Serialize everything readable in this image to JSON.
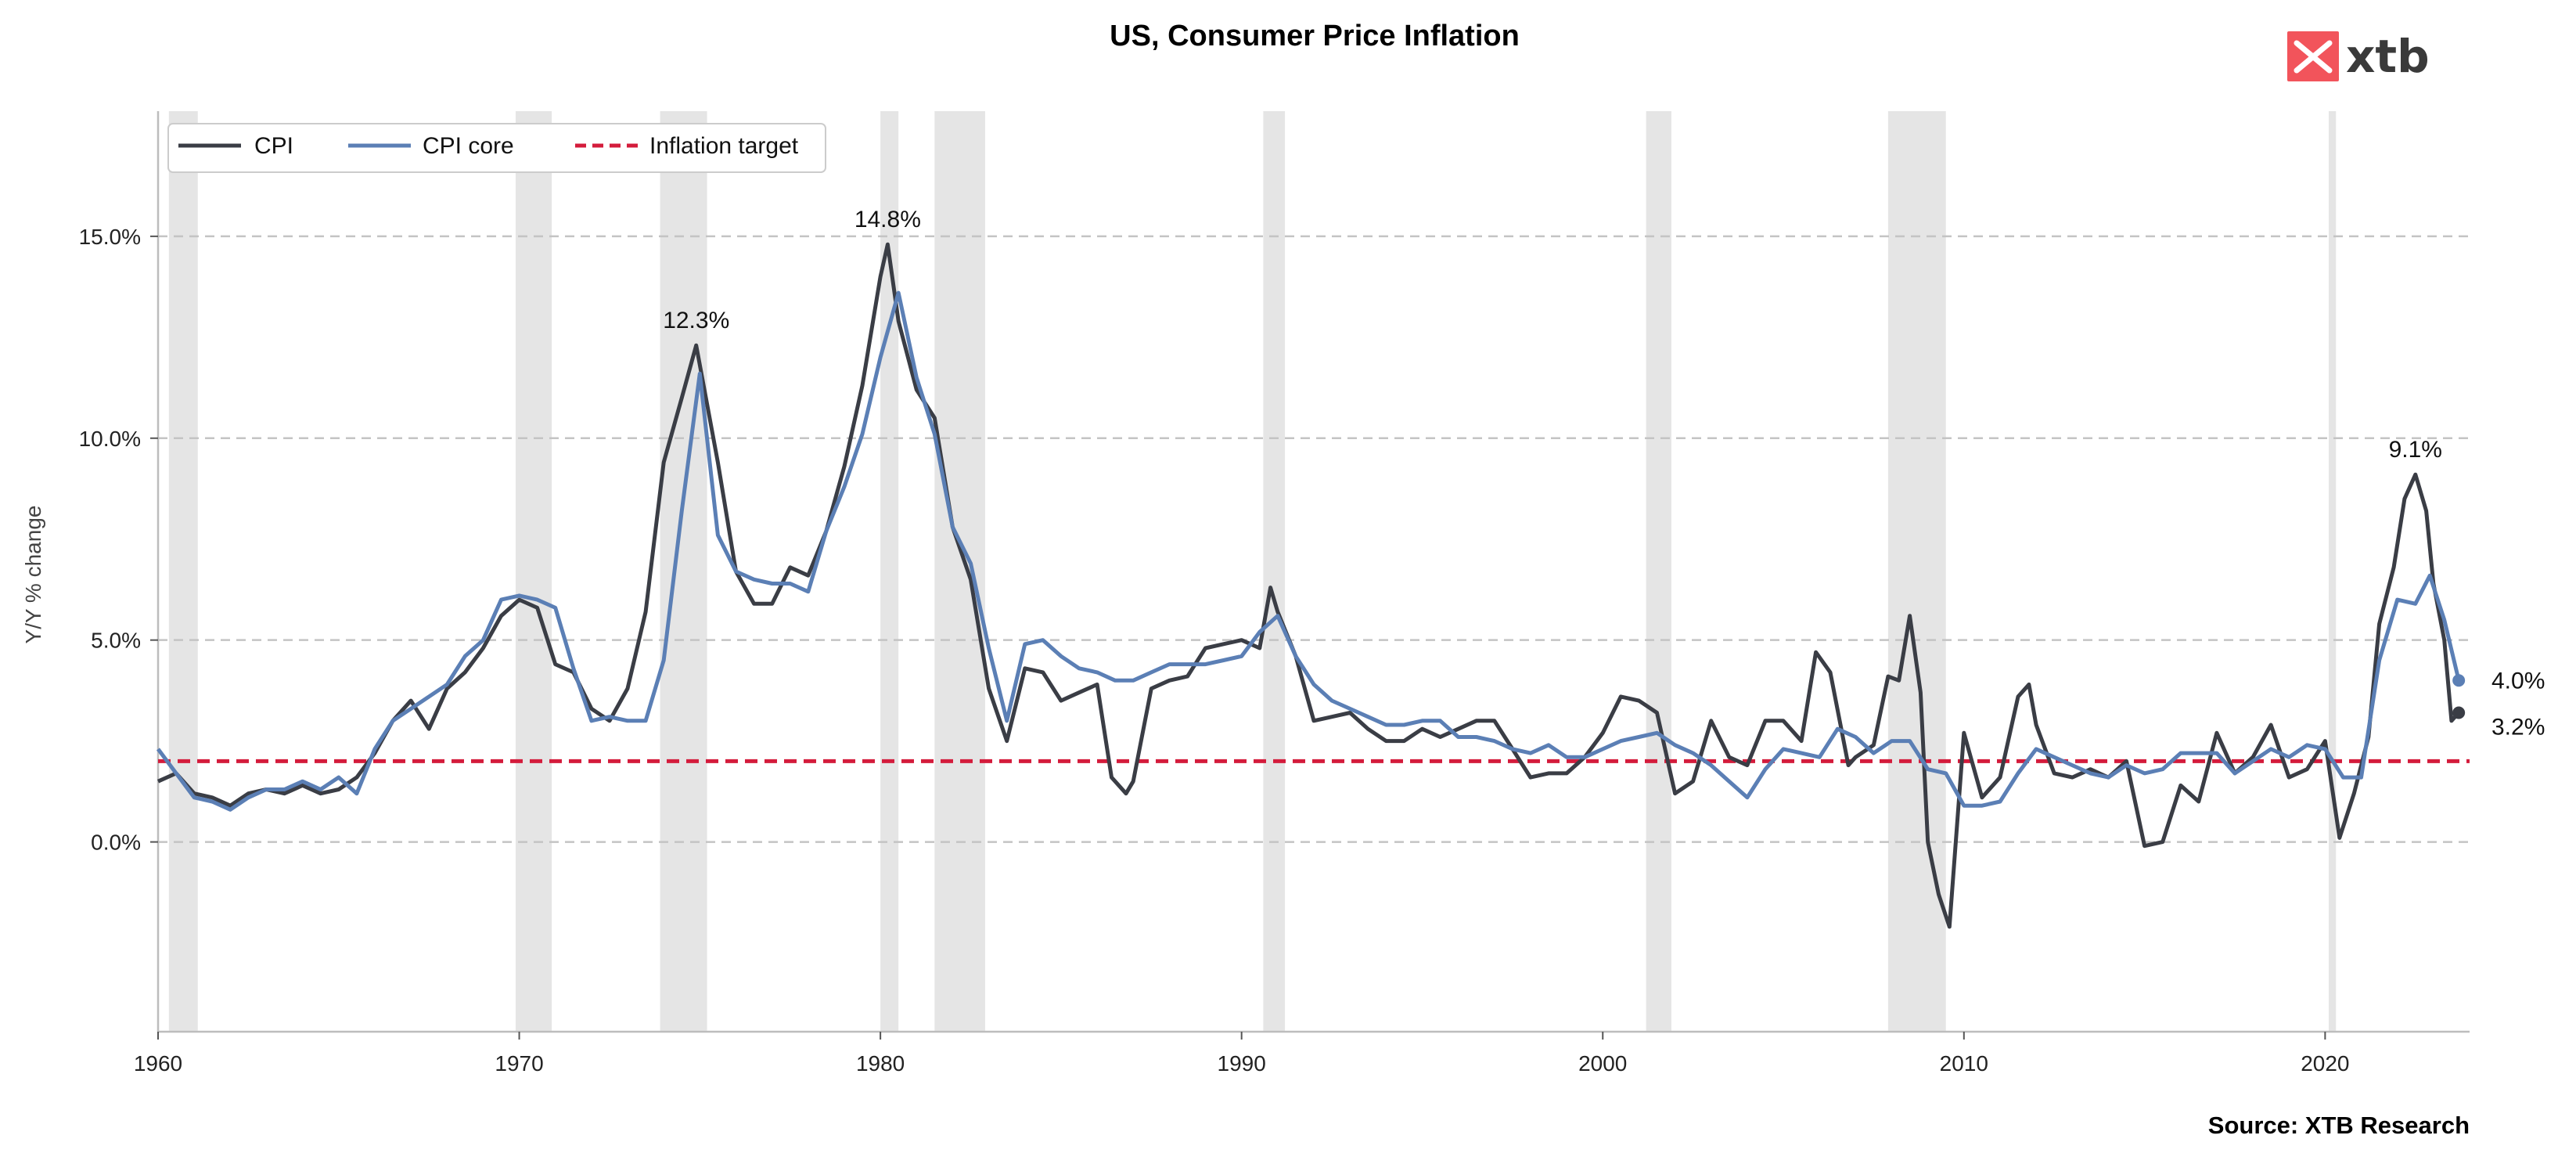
{
  "chart_data": {
    "type": "line",
    "title": "US, Consumer Price Inflation",
    "ylabel": "Y/Y % change",
    "source": "Source: XTB Research",
    "xlim": [
      1960,
      2024.0
    ],
    "ylim": [
      -4.7,
      18.1
    ],
    "x_ticks": [
      1960,
      1970,
      1980,
      1990,
      2000,
      2010,
      2020
    ],
    "x_tick_labels": [
      "1960",
      "1970",
      "1980",
      "1990",
      "2000",
      "2010",
      "2020"
    ],
    "y_ticks": [
      0,
      5,
      10,
      15
    ],
    "y_tick_labels": [
      "0.0%",
      "5.0%",
      "10.0%",
      "15.0%"
    ],
    "grid": "horizontal dashed",
    "legend_position": "top-left",
    "recessions": [
      [
        1960.3,
        1961.1
      ],
      [
        1969.9,
        1970.9
      ],
      [
        1973.9,
        1975.2
      ],
      [
        1980.0,
        1980.5
      ],
      [
        1981.5,
        1982.9
      ],
      [
        1990.6,
        1991.2
      ],
      [
        2001.2,
        2001.9
      ],
      [
        2007.9,
        2009.5
      ],
      [
        2020.1,
        2020.3
      ]
    ],
    "series": [
      {
        "name": "CPI",
        "color": "#3a3d45",
        "style": "solid",
        "x": [
          1960.0,
          1960.5,
          1961.0,
          1961.5,
          1962.0,
          1962.5,
          1963.0,
          1963.5,
          1964.0,
          1964.5,
          1965.0,
          1965.5,
          1966.0,
          1966.5,
          1967.0,
          1967.5,
          1968.0,
          1968.5,
          1969.0,
          1969.5,
          1970.0,
          1970.5,
          1971.0,
          1971.5,
          1972.0,
          1972.5,
          1973.0,
          1973.5,
          1974.0,
          1974.5,
          1974.9,
          1975.5,
          1976.0,
          1976.5,
          1977.0,
          1977.5,
          1978.0,
          1978.5,
          1979.0,
          1979.5,
          1980.0,
          1980.2,
          1980.5,
          1981.0,
          1981.5,
          1982.0,
          1982.5,
          1983.0,
          1983.5,
          1984.0,
          1984.5,
          1985.0,
          1985.5,
          1986.0,
          1986.4,
          1986.8,
          1987.0,
          1987.5,
          1988.0,
          1988.5,
          1989.0,
          1989.5,
          1990.0,
          1990.5,
          1990.8,
          1991.0,
          1991.5,
          1992.0,
          1992.5,
          1993.0,
          1993.5,
          1994.0,
          1994.5,
          1995.0,
          1995.5,
          1996.0,
          1996.5,
          1997.0,
          1997.5,
          1998.0,
          1998.5,
          1999.0,
          1999.5,
          2000.0,
          2000.5,
          2001.0,
          2001.5,
          2002.0,
          2002.5,
          2003.0,
          2003.5,
          2004.0,
          2004.5,
          2005.0,
          2005.5,
          2005.9,
          2006.3,
          2006.8,
          2007.0,
          2007.5,
          2007.9,
          2008.2,
          2008.5,
          2008.8,
          2009.0,
          2009.3,
          2009.6,
          2010.0,
          2010.5,
          2011.0,
          2011.5,
          2011.8,
          2012.0,
          2012.5,
          2013.0,
          2013.5,
          2014.0,
          2014.5,
          2015.0,
          2015.5,
          2016.0,
          2016.5,
          2017.0,
          2017.5,
          2018.0,
          2018.5,
          2019.0,
          2019.5,
          2020.0,
          2020.4,
          2020.8,
          2021.2,
          2021.5,
          2021.9,
          2022.2,
          2022.5,
          2022.8,
          2023.0,
          2023.3,
          2023.5,
          2023.7
        ],
        "values": [
          1.5,
          1.7,
          1.2,
          1.1,
          0.9,
          1.2,
          1.3,
          1.2,
          1.4,
          1.2,
          1.3,
          1.6,
          2.2,
          3.0,
          3.5,
          2.8,
          3.8,
          4.2,
          4.8,
          5.6,
          6.0,
          5.8,
          4.4,
          4.2,
          3.3,
          3.0,
          3.8,
          5.7,
          9.4,
          11.0,
          12.3,
          9.4,
          6.7,
          5.9,
          5.9,
          6.8,
          6.6,
          7.7,
          9.3,
          11.3,
          14.0,
          14.8,
          12.9,
          11.2,
          10.5,
          7.8,
          6.5,
          3.8,
          2.5,
          4.3,
          4.2,
          3.5,
          3.7,
          3.9,
          1.6,
          1.2,
          1.5,
          3.8,
          4.0,
          4.1,
          4.8,
          4.9,
          5.0,
          4.8,
          6.3,
          5.7,
          4.6,
          3.0,
          3.1,
          3.2,
          2.8,
          2.5,
          2.5,
          2.8,
          2.6,
          2.8,
          3.0,
          3.0,
          2.3,
          1.6,
          1.7,
          1.7,
          2.1,
          2.7,
          3.6,
          3.5,
          3.2,
          1.2,
          1.5,
          3.0,
          2.1,
          1.9,
          3.0,
          3.0,
          2.5,
          4.7,
          4.2,
          1.9,
          2.1,
          2.4,
          4.1,
          4.0,
          5.6,
          3.7,
          0.0,
          -1.3,
          -2.1,
          2.7,
          1.1,
          1.6,
          3.6,
          3.9,
          2.9,
          1.7,
          1.6,
          1.8,
          1.6,
          2.0,
          -0.1,
          0.0,
          1.4,
          1.0,
          2.7,
          1.7,
          2.1,
          2.9,
          1.6,
          1.8,
          2.5,
          0.1,
          1.2,
          2.6,
          5.4,
          6.8,
          8.5,
          9.1,
          8.2,
          6.4,
          5.0,
          3.0,
          3.2
        ]
      },
      {
        "name": "CPI core",
        "color": "#5b7fb5",
        "style": "solid",
        "x": [
          1960.0,
          1960.5,
          1961.0,
          1961.5,
          1962.0,
          1962.5,
          1963.0,
          1963.5,
          1964.0,
          1964.5,
          1965.0,
          1965.5,
          1966.0,
          1966.5,
          1967.0,
          1967.5,
          1968.0,
          1968.5,
          1969.0,
          1969.5,
          1970.0,
          1970.5,
          1971.0,
          1971.5,
          1972.0,
          1972.5,
          1973.0,
          1973.5,
          1974.0,
          1974.5,
          1975.0,
          1975.5,
          1976.0,
          1976.5,
          1977.0,
          1977.5,
          1978.0,
          1978.5,
          1979.0,
          1979.5,
          1980.0,
          1980.5,
          1981.0,
          1981.5,
          1982.0,
          1982.5,
          1983.0,
          1983.5,
          1984.0,
          1984.5,
          1985.0,
          1985.5,
          1986.0,
          1986.5,
          1987.0,
          1987.5,
          1988.0,
          1988.5,
          1989.0,
          1989.5,
          1990.0,
          1990.5,
          1991.0,
          1991.5,
          1992.0,
          1992.5,
          1993.0,
          1993.5,
          1994.0,
          1994.5,
          1995.0,
          1995.5,
          1996.0,
          1996.5,
          1997.0,
          1997.5,
          1998.0,
          1998.5,
          1999.0,
          1999.5,
          2000.0,
          2000.5,
          2001.0,
          2001.5,
          2002.0,
          2002.5,
          2003.0,
          2003.5,
          2004.0,
          2004.5,
          2005.0,
          2005.5,
          2006.0,
          2006.5,
          2007.0,
          2007.5,
          2008.0,
          2008.5,
          2009.0,
          2009.5,
          2010.0,
          2010.5,
          2011.0,
          2011.5,
          2012.0,
          2012.5,
          2013.0,
          2013.5,
          2014.0,
          2014.5,
          2015.0,
          2015.5,
          2016.0,
          2016.5,
          2017.0,
          2017.5,
          2018.0,
          2018.5,
          2019.0,
          2019.5,
          2020.0,
          2020.5,
          2021.0,
          2021.5,
          2022.0,
          2022.5,
          2022.9,
          2023.3,
          2023.7
        ],
        "values": [
          2.3,
          1.7,
          1.1,
          1.0,
          0.8,
          1.1,
          1.3,
          1.3,
          1.5,
          1.3,
          1.6,
          1.2,
          2.3,
          3.0,
          3.3,
          3.6,
          3.9,
          4.6,
          5.0,
          6.0,
          6.1,
          6.0,
          5.8,
          4.3,
          3.0,
          3.1,
          3.0,
          3.0,
          4.5,
          8.2,
          11.6,
          7.6,
          6.7,
          6.5,
          6.4,
          6.4,
          6.2,
          7.7,
          8.8,
          10.1,
          12.0,
          13.6,
          11.5,
          10.1,
          7.8,
          6.9,
          4.8,
          3.0,
          4.9,
          5.0,
          4.6,
          4.3,
          4.2,
          4.0,
          4.0,
          4.2,
          4.4,
          4.4,
          4.4,
          4.5,
          4.6,
          5.2,
          5.6,
          4.6,
          3.9,
          3.5,
          3.3,
          3.1,
          2.9,
          2.9,
          3.0,
          3.0,
          2.6,
          2.6,
          2.5,
          2.3,
          2.2,
          2.4,
          2.1,
          2.1,
          2.3,
          2.5,
          2.6,
          2.7,
          2.4,
          2.2,
          1.9,
          1.5,
          1.1,
          1.8,
          2.3,
          2.2,
          2.1,
          2.8,
          2.6,
          2.2,
          2.5,
          2.5,
          1.8,
          1.7,
          0.9,
          0.9,
          1.0,
          1.7,
          2.3,
          2.1,
          1.9,
          1.7,
          1.6,
          1.9,
          1.7,
          1.8,
          2.2,
          2.2,
          2.2,
          1.7,
          2.0,
          2.3,
          2.1,
          2.4,
          2.3,
          1.6,
          1.6,
          4.5,
          6.0,
          5.9,
          6.6,
          5.5,
          4.0
        ]
      },
      {
        "name": "Inflation target",
        "color": "#d41c3c",
        "style": "dashed",
        "constant": 2.0
      }
    ],
    "annotations": [
      {
        "label": "12.3%",
        "x": 1974.9,
        "y": 12.3
      },
      {
        "label": "14.8%",
        "x": 1980.2,
        "y": 14.8
      },
      {
        "label": "9.1%",
        "x": 2022.5,
        "y": 9.1
      }
    ],
    "end_labels": [
      {
        "series": "CPI core",
        "label": "4.0%",
        "value": 4.0
      },
      {
        "series": "CPI",
        "label": "3.2%",
        "value": 3.2
      }
    ]
  },
  "logo": {
    "text": "xtb",
    "color": "#f2545b"
  }
}
